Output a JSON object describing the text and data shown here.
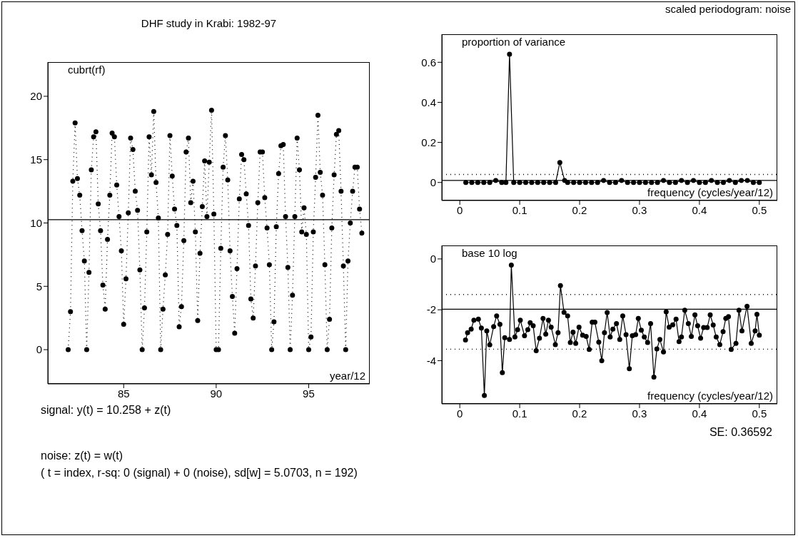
{
  "chart_data": [
    {
      "type": "line",
      "title": "DHF study in Krabi: 1982-97",
      "annotations": [
        "cubrt(rf)",
        "year/12"
      ],
      "color": "#000000",
      "marker": "circle",
      "line_style": "dotted",
      "xlim": [
        80.9,
        98.3
      ],
      "xticks": [
        85,
        90,
        95
      ],
      "ylim": [
        -2.7,
        22.7
      ],
      "yticks": [
        0,
        5,
        10,
        15,
        20
      ],
      "ref_lines": [
        {
          "axis": "y",
          "value": 10.258,
          "color": "#000000",
          "line_style": "solid"
        }
      ],
      "x": [
        82,
        82.125,
        82.25,
        82.375,
        82.5,
        82.625,
        82.75,
        82.875,
        83,
        83.125,
        83.25,
        83.375,
        83.5,
        83.625,
        83.75,
        83.875,
        84,
        84.125,
        84.25,
        84.375,
        84.5,
        84.625,
        84.75,
        84.875,
        85,
        85.125,
        85.25,
        85.375,
        85.5,
        85.625,
        85.75,
        85.875,
        86,
        86.125,
        86.25,
        86.375,
        86.5,
        86.625,
        86.75,
        86.875,
        87,
        87.125,
        87.25,
        87.375,
        87.5,
        87.625,
        87.75,
        87.875,
        88,
        88.125,
        88.25,
        88.375,
        88.5,
        88.625,
        88.75,
        88.875,
        89,
        89.125,
        89.25,
        89.375,
        89.5,
        89.625,
        89.75,
        89.875,
        90,
        90.125,
        90.25,
        90.375,
        90.5,
        90.625,
        90.75,
        90.875,
        91,
        91.125,
        91.25,
        91.375,
        91.5,
        91.625,
        91.75,
        91.875,
        92,
        92.125,
        92.25,
        92.375,
        92.5,
        92.625,
        92.75,
        92.875,
        93,
        93.125,
        93.25,
        93.375,
        93.5,
        93.625,
        93.75,
        93.875,
        94,
        94.125,
        94.25,
        94.375,
        94.5,
        94.625,
        94.75,
        94.875,
        95,
        95.125,
        95.25,
        95.375,
        95.5,
        95.625,
        95.75,
        95.875,
        96,
        96.125,
        96.25,
        96.375,
        96.5,
        96.625,
        96.75,
        96.875,
        97,
        97.125,
        97.25,
        97.375,
        97.5,
        97.625,
        97.75,
        97.875
      ],
      "values": [
        0,
        3,
        13.3,
        17.9,
        13.5,
        12.2,
        9.4,
        7,
        0,
        6.1,
        14.2,
        16.8,
        17.2,
        11.5,
        9.4,
        5.1,
        3.2,
        8.7,
        12.2,
        17.1,
        16.8,
        13,
        10.5,
        7.8,
        2,
        5.6,
        10.8,
        16.7,
        15.8,
        12.5,
        11,
        6.3,
        0,
        3.3,
        9.3,
        16.8,
        13.8,
        18.8,
        13.2,
        10.4,
        0,
        3.2,
        5.9,
        9.1,
        16.9,
        13.7,
        11.1,
        9.8,
        1.8,
        3.4,
        8.6,
        15.6,
        16.7,
        11.6,
        13.3,
        9.3,
        2.3,
        7.6,
        11.3,
        14.9,
        10.5,
        14.8,
        18.9,
        10.7,
        0,
        0,
        8,
        14.4,
        16.9,
        13.4,
        7.8,
        4.2,
        1.3,
        6.4,
        11.9,
        15.4,
        15,
        12.3,
        9.8,
        4,
        2.5,
        6.6,
        11.6,
        15.6,
        15.6,
        12,
        9.6,
        6.7,
        0,
        2.2,
        9.7,
        13.9,
        16.1,
        16.2,
        10.5,
        6.5,
        0,
        4.3,
        10.5,
        16.7,
        14.2,
        9.3,
        11.2,
        9.1,
        0,
        1,
        9.3,
        13.6,
        18.5,
        14,
        12.2,
        6.7,
        0,
        2.4,
        9.6,
        13.8,
        17,
        17.3,
        12.5,
        6.6,
        0,
        7,
        10,
        12.5,
        14.4,
        14.4,
        11.1,
        9.2
      ]
    },
    {
      "type": "line",
      "title": "scaled periodogram: noise",
      "annotations": [
        "proportion of variance",
        "frequency (cycles/year/12)"
      ],
      "color": "#000000",
      "marker": "circle",
      "line_style": "solid",
      "xlim": [
        -0.03,
        0.53
      ],
      "xticks": [
        0,
        0.1,
        0.2,
        0.3,
        0.4,
        0.5
      ],
      "ylim": [
        -0.09,
        0.74
      ],
      "yticks": [
        0,
        0.2,
        0.4,
        0.6
      ],
      "ref_lines": [
        {
          "axis": "y",
          "value": 0.01,
          "color": "#000000",
          "line_style": "solid"
        },
        {
          "axis": "y",
          "value": 0.04,
          "color": "#000000",
          "line_style": "dotted"
        }
      ],
      "x": [
        0.01,
        0.02,
        0.03,
        0.04,
        0.05,
        0.06,
        0.07,
        0.077,
        0.083,
        0.09,
        0.1,
        0.11,
        0.12,
        0.13,
        0.14,
        0.15,
        0.16,
        0.167,
        0.175,
        0.18,
        0.19,
        0.2,
        0.21,
        0.22,
        0.23,
        0.24,
        0.25,
        0.26,
        0.27,
        0.28,
        0.29,
        0.3,
        0.31,
        0.32,
        0.33,
        0.34,
        0.35,
        0.36,
        0.37,
        0.38,
        0.39,
        0.4,
        0.41,
        0.42,
        0.43,
        0.44,
        0.45,
        0.46,
        0.47,
        0.48,
        0.49,
        0.5
      ],
      "values": [
        0,
        0,
        0,
        0,
        0,
        0.01,
        0,
        0,
        0.64,
        0,
        0,
        0,
        0,
        0,
        0,
        0,
        0,
        0.1,
        0.01,
        0,
        0,
        0,
        0,
        0,
        0,
        0.01,
        0,
        0,
        0.01,
        0,
        0,
        0,
        0,
        0,
        0,
        0.01,
        0,
        0,
        0.01,
        0,
        0.01,
        0,
        0,
        0.01,
        0,
        0,
        0.01,
        0,
        0.01,
        0.01,
        0,
        0
      ]
    },
    {
      "type": "line",
      "annotations": [
        "base 10 log",
        "frequency (cycles/year/12)"
      ],
      "color": "#000000",
      "marker": "circle",
      "line_style": "solid",
      "xlim": [
        -0.03,
        0.53
      ],
      "xticks": [
        0,
        0.1,
        0.2,
        0.3,
        0.4,
        0.5
      ],
      "ylim": [
        -5.7,
        0.53
      ],
      "yticks": [
        0,
        -2,
        -4
      ],
      "ref_lines": [
        {
          "axis": "y",
          "value": -1.98,
          "color": "#000000",
          "line_style": "solid"
        },
        {
          "axis": "y",
          "value": -1.4,
          "color": "#000000",
          "line_style": "dotted"
        },
        {
          "axis": "y",
          "value": -3.55,
          "color": "#000000",
          "line_style": "dotted"
        }
      ],
      "x": [
        0.0095,
        0.013,
        0.019,
        0.0235,
        0.031,
        0.036,
        0.041,
        0.045,
        0.05,
        0.0565,
        0.0615,
        0.067,
        0.071,
        0.075,
        0.083,
        0.086,
        0.092,
        0.0965,
        0.101,
        0.108,
        0.1135,
        0.1175,
        0.1225,
        0.1275,
        0.133,
        0.139,
        0.1435,
        0.148,
        0.1525,
        0.1595,
        0.164,
        0.168,
        0.174,
        0.18,
        0.1845,
        0.189,
        0.1935,
        0.199,
        0.205,
        0.211,
        0.216,
        0.221,
        0.2255,
        0.232,
        0.237,
        0.2415,
        0.246,
        0.251,
        0.2555,
        0.2615,
        0.267,
        0.272,
        0.2775,
        0.283,
        0.288,
        0.2935,
        0.298,
        0.303,
        0.308,
        0.3135,
        0.3185,
        0.324,
        0.329,
        0.334,
        0.34,
        0.3445,
        0.3495,
        0.3555,
        0.361,
        0.366,
        0.37,
        0.3755,
        0.3815,
        0.3865,
        0.3925,
        0.397,
        0.402,
        0.407,
        0.413,
        0.418,
        0.423,
        0.428,
        0.434,
        0.4395,
        0.444,
        0.4485,
        0.453,
        0.461,
        0.466,
        0.471,
        0.4795,
        0.4865,
        0.493,
        0.496,
        0.5
      ],
      "values": [
        -3.19,
        -2.9,
        -2.76,
        -2.41,
        -2.37,
        -2.72,
        -5.37,
        -2.83,
        -3.38,
        -2.66,
        -2.24,
        -2.57,
        -4.47,
        -3.1,
        -3.17,
        -0.24,
        -3.07,
        -2.78,
        -2.41,
        -3.02,
        -2.78,
        -2.51,
        -2.63,
        -3.61,
        -3.12,
        -2.34,
        -2.96,
        -2.41,
        -2.68,
        -3.37,
        -2.9,
        -1.05,
        -2.1,
        -2.24,
        -3.29,
        -2.88,
        -3.32,
        -2.68,
        -3,
        -3.05,
        -3.56,
        -2.49,
        -2.49,
        -3.27,
        -4,
        -2.9,
        -2.11,
        -3.07,
        -2.76,
        -2.54,
        -3.17,
        -2.24,
        -2.98,
        -4.32,
        -3.02,
        -2.98,
        -2.34,
        -2.8,
        -3.07,
        -3.29,
        -2.54,
        -4.65,
        -3.54,
        -3.17,
        -3.66,
        -2.08,
        -2.68,
        -2.59,
        -2.37,
        -3.25,
        -3.07,
        -2.02,
        -2.54,
        -3.05,
        -2.2,
        -2.63,
        -3.12,
        -2.7,
        -2.7,
        -2.2,
        -2.6,
        -3.07,
        -3.37,
        -2.86,
        -2.34,
        -2.27,
        -3.56,
        -3.32,
        -2.02,
        -2.83,
        -1.86,
        -3.32,
        -2.83,
        -2.18,
        -3
      ]
    },
    {
      "type": "other",
      "annotations": [
        "signal: y(t) = 10.258 + z(t)",
        "SE: 0.36592",
        "noise:  z(t) =  w(t)",
        "( t = index, r-sq: 0 (signal) + 0 (noise), sd[w] = 5.0703, n = 192)"
      ]
    }
  ]
}
